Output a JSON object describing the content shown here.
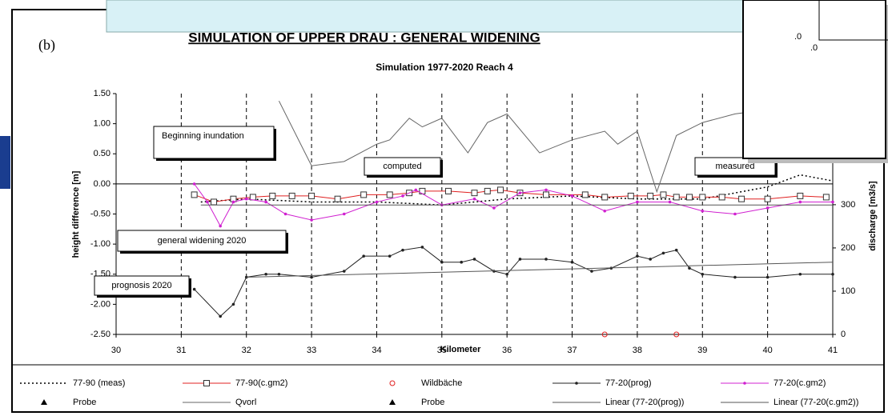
{
  "chart_data": {
    "type": "line",
    "label": "(b)",
    "title": "SIMULATION OF UPPER DRAU : GENERAL WIDENING",
    "subtitle": "Simulation 1977-2020   Reach 4",
    "x_label": "Kilometer",
    "y_label": "height difference [m]",
    "y2_label": "discharge [m3/s]",
    "xlim": [
      30,
      41
    ],
    "xticks": [
      30,
      31,
      32,
      33,
      34,
      35,
      36,
      37,
      38,
      39,
      40,
      41
    ],
    "ylim": [
      -2.5,
      1.5
    ],
    "yticks": [
      {
        "value": 1.5,
        "label": "1.50"
      },
      {
        "value": 1.0,
        "label": "1.00"
      },
      {
        "value": 0.5,
        "label": "0.50"
      },
      {
        "value": 0,
        "label": "0.00"
      },
      {
        "value": -0.5,
        "label": "-0.50"
      },
      {
        "value": -1.0,
        "label": "-1.00"
      },
      {
        "value": -1.5,
        "label": "-1.50"
      },
      {
        "value": -2.0,
        "label": "-2.00"
      },
      {
        "value": -2.5,
        "label": "-2.50"
      }
    ],
    "y2lim": [
      0,
      557
    ],
    "y2ticks": [
      0,
      100,
      200,
      300
    ],
    "grid": "x",
    "series": [
      {
        "name": "77-90 (meas)",
        "color": "#000000",
        "dash": true,
        "marker": "none",
        "x": [
          31.3,
          32,
          33,
          34,
          35,
          36,
          37,
          38,
          38.5,
          39,
          39.5,
          40,
          40.5,
          41
        ],
        "values": [
          -0.3,
          -0.25,
          -0.3,
          -0.3,
          -0.35,
          -0.25,
          -0.2,
          -0.25,
          -0.25,
          -0.25,
          -0.15,
          -0.05,
          0.15,
          0.05
        ]
      },
      {
        "name": "77-90(c.gm2)",
        "color": "#e02020",
        "dash": false,
        "marker": "square",
        "x": [
          31.2,
          31.5,
          31.8,
          32.1,
          32.4,
          32.7,
          33,
          33.4,
          33.8,
          34.2,
          34.5,
          34.7,
          35.1,
          35.5,
          35.7,
          35.9,
          36.2,
          36.6,
          37.2,
          37.5,
          37.9,
          38.2,
          38.4,
          38.6,
          38.8,
          39,
          39.3,
          39.6,
          40,
          40.5,
          40.9
        ],
        "values": [
          -0.18,
          -0.3,
          -0.25,
          -0.22,
          -0.2,
          -0.2,
          -0.2,
          -0.25,
          -0.18,
          -0.18,
          -0.15,
          -0.12,
          -0.12,
          -0.15,
          -0.12,
          -0.1,
          -0.15,
          -0.18,
          -0.18,
          -0.22,
          -0.2,
          -0.2,
          -0.18,
          -0.22,
          -0.22,
          -0.22,
          -0.22,
          -0.25,
          -0.25,
          -0.2,
          -0.22
        ]
      },
      {
        "name": "Wildbäche",
        "color": "#e02020",
        "dash": false,
        "marker": "circle",
        "nolink": true,
        "axis": "y2",
        "x": [
          37.5,
          38.6
        ],
        "values": [
          0,
          0
        ]
      },
      {
        "name": "77-20(prog)",
        "color": "#222222",
        "dash": false,
        "marker": "dot",
        "x": [
          31.2,
          31.6,
          31.8,
          32,
          32.3,
          32.5,
          33,
          33.5,
          33.8,
          34.2,
          34.4,
          34.7,
          35,
          35.3,
          35.5,
          35.8,
          36,
          36.2,
          36.6,
          37,
          37.3,
          37.6,
          38,
          38.2,
          38.4,
          38.6,
          38.8,
          39,
          39.5,
          40,
          40.5,
          41
        ],
        "values": [
          -1.75,
          -2.2,
          -2.0,
          -1.55,
          -1.5,
          -1.5,
          -1.55,
          -1.45,
          -1.2,
          -1.2,
          -1.1,
          -1.05,
          -1.3,
          -1.3,
          -1.25,
          -1.45,
          -1.5,
          -1.25,
          -1.25,
          -1.3,
          -1.45,
          -1.4,
          -1.2,
          -1.25,
          -1.15,
          -1.1,
          -1.4,
          -1.5,
          -1.55,
          -1.55,
          -1.5,
          -1.5
        ]
      },
      {
        "name": "77-20(c.gm2)",
        "color": "#d020d0",
        "dash": false,
        "marker": "dot",
        "x": [
          31.2,
          31.4,
          31.6,
          31.8,
          32,
          32.3,
          32.6,
          33,
          33.5,
          34,
          34.4,
          34.6,
          35,
          35.5,
          35.8,
          36.2,
          36.6,
          37,
          37.5,
          38,
          38.5,
          39,
          39.5,
          40,
          40.5,
          41
        ],
        "values": [
          0.0,
          -0.3,
          -0.7,
          -0.3,
          -0.25,
          -0.3,
          -0.5,
          -0.6,
          -0.5,
          -0.3,
          -0.2,
          -0.1,
          -0.35,
          -0.25,
          -0.4,
          -0.15,
          -0.1,
          -0.2,
          -0.45,
          -0.3,
          -0.3,
          -0.45,
          -0.5,
          -0.4,
          -0.3,
          -0.3
        ]
      },
      {
        "name": "Probe",
        "color": "#000000",
        "dash": false,
        "marker": "triangle",
        "x": [],
        "values": []
      },
      {
        "name": "Qvorl",
        "color": "#666666",
        "dash": false,
        "marker": "none",
        "axis": "y2",
        "x": [
          32.5,
          33,
          33.5,
          34,
          34.2,
          34.5,
          34.7,
          35,
          35.4,
          35.7,
          36,
          36.5,
          37,
          37.5,
          37.7,
          38,
          38.3,
          38.6,
          39,
          39.5,
          40
        ],
        "values": [
          540,
          390,
          400,
          440,
          450,
          500,
          480,
          500,
          420,
          490,
          510,
          420,
          450,
          470,
          440,
          470,
          330,
          460,
          490,
          510,
          520
        ]
      },
      {
        "name": "Probe",
        "color": "#000000",
        "dash": false,
        "marker": "triangle",
        "x": [],
        "values": []
      },
      {
        "name": "Linear (77-20(prog))",
        "color": "#555555",
        "dash": false,
        "marker": "none",
        "x": [
          32,
          41
        ],
        "values": [
          -1.55,
          -1.3
        ]
      },
      {
        "name": "Linear (77-20(c.gm2))",
        "color": "#555555",
        "dash": false,
        "marker": "none",
        "x": [
          31.3,
          41
        ],
        "values": [
          -0.35,
          -0.35
        ]
      }
    ],
    "annotations": [
      "Beginning inundation",
      "computed",
      "measured",
      "general widening  2020",
      "prognosis 2020"
    ]
  },
  "background": {
    "labels": [
      ".0",
      ".0"
    ]
  }
}
